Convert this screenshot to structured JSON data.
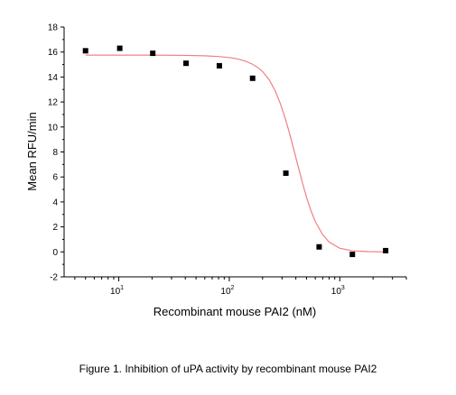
{
  "chart_data": {
    "type": "scatter",
    "title": "",
    "xlabel": "Recombinant mouse PAI2 (nM)",
    "ylabel": "Mean RFU/min",
    "x_scale": "log",
    "xlim": [
      3.2,
      4000
    ],
    "ylim": [
      -2,
      18
    ],
    "y_ticks": [
      -2,
      0,
      2,
      4,
      6,
      8,
      10,
      12,
      14,
      16,
      18
    ],
    "x_major_ticks": [
      10,
      100,
      1000
    ],
    "x_tick_labels": [
      {
        "base": "10",
        "exp": "1"
      },
      {
        "base": "10",
        "exp": "2"
      },
      {
        "base": "10",
        "exp": "3"
      }
    ],
    "grid": false,
    "legend": "none",
    "series": [
      {
        "kind": "points",
        "marker": "square",
        "color": "#000000",
        "x": [
          5,
          10.2,
          20.3,
          40.6,
          81.3,
          162.5,
          325,
          650,
          1300,
          2600
        ],
        "y": [
          16.1,
          16.3,
          15.9,
          15.1,
          14.9,
          13.9,
          6.3,
          0.4,
          -0.2,
          0.1
        ]
      },
      {
        "kind": "fit_line",
        "color": "#f08080",
        "x": [
          5,
          10,
          20,
          40,
          60,
          80,
          100,
          120,
          140,
          160,
          180,
          200,
          230,
          260,
          290,
          320,
          350,
          380,
          420,
          460,
          500,
          550,
          600,
          700,
          800,
          1000,
          1300,
          1800,
          2600
        ],
        "y": [
          15.75,
          15.75,
          15.75,
          15.73,
          15.7,
          15.64,
          15.56,
          15.44,
          15.27,
          15.05,
          14.78,
          14.44,
          13.77,
          12.9,
          11.86,
          10.72,
          9.52,
          8.33,
          6.83,
          5.5,
          4.38,
          3.26,
          2.43,
          1.37,
          0.79,
          0.29,
          0.09,
          0.02,
          0.0
        ]
      }
    ]
  },
  "caption": "Figure 1. Inhibition of uPA activity by recombinant mouse PAI2"
}
